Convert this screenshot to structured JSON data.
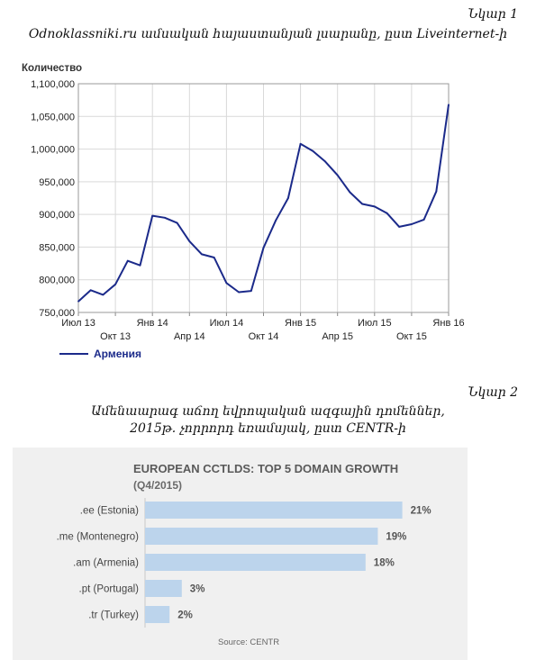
{
  "figure1": {
    "label": "Նկար 1",
    "caption": "Odnoklassniki.ru ամսական հայաստանյան լսարանը, ըստ Liveinternet-ի"
  },
  "figure2": {
    "label": "Նկար 2",
    "caption_line1": "Ամենաարագ աճող եվրոպական ազգային դոմեններ,",
    "caption_line2": "2015թ. չորրորդ եռամսյակ, ըստ CENTR-ի"
  },
  "chart_data": [
    {
      "type": "line",
      "ylabel": "Количество",
      "ylim": [
        750000,
        1100000
      ],
      "yticks": [
        750000,
        800000,
        850000,
        900000,
        950000,
        1000000,
        1050000,
        1100000
      ],
      "ytick_labels": [
        "750,000",
        "800,000",
        "850,000",
        "900,000",
        "950,000",
        "1,000,000",
        "1,050,000",
        "1,100,000"
      ],
      "x": [
        "Июл 13",
        "Авг 13",
        "Сен 13",
        "Окт 13",
        "Ноя 13",
        "Дек 13",
        "Янв 14",
        "Фев 14",
        "Мар 14",
        "Апр 14",
        "Май 14",
        "Июн 14",
        "Июл 14",
        "Авг 14",
        "Сен 14",
        "Окт 14",
        "Ноя 14",
        "Дек 14",
        "Янв 15",
        "Фев 15",
        "Мар 15",
        "Апр 15",
        "Май 15",
        "Июн 15",
        "Июл 15",
        "Авг 15",
        "Сен 15",
        "Окт 15",
        "Ноя 15",
        "Дек 15",
        "Янв 16"
      ],
      "xticks": [
        {
          "label": "Июл 13",
          "index": 0,
          "row": 0
        },
        {
          "label": "Окт 13",
          "index": 3,
          "row": 1
        },
        {
          "label": "Янв 14",
          "index": 6,
          "row": 0
        },
        {
          "label": "Апр 14",
          "index": 9,
          "row": 1
        },
        {
          "label": "Июл 14",
          "index": 12,
          "row": 0
        },
        {
          "label": "Окт 14",
          "index": 15,
          "row": 1
        },
        {
          "label": "Янв 15",
          "index": 18,
          "row": 0
        },
        {
          "label": "Апр 15",
          "index": 21,
          "row": 1
        },
        {
          "label": "Июл 15",
          "index": 24,
          "row": 0
        },
        {
          "label": "Окт 15",
          "index": 27,
          "row": 1
        },
        {
          "label": "Янв 16",
          "index": 30,
          "row": 0
        }
      ],
      "series": [
        {
          "name": "Армения",
          "color": "#1b2a8a",
          "values": [
            767000,
            784000,
            777000,
            793000,
            829000,
            822000,
            898000,
            895000,
            887000,
            859000,
            839000,
            834000,
            795000,
            781000,
            783000,
            849000,
            891000,
            925000,
            1008000,
            997000,
            981000,
            960000,
            934000,
            916000,
            912000,
            902000,
            881000,
            885000,
            892000,
            935000,
            1068000
          ]
        }
      ],
      "grid": true,
      "legend": "bottom-left"
    },
    {
      "type": "bar",
      "orientation": "horizontal",
      "title": "EUROPEAN CCTLDS: TOP 5 DOMAIN GROWTH",
      "subtitle": "(Q4/2015)",
      "categories": [
        ".ee (Estonia)",
        ".me (Montenegro)",
        ".am (Armenia)",
        ".pt (Portugal)",
        ".tr (Turkey)"
      ],
      "values": [
        21,
        19,
        18,
        3,
        2
      ],
      "value_labels": [
        "21%",
        "19%",
        "18%",
        "3%",
        "2%"
      ],
      "bar_color": "#bcd4ec",
      "source": "Source: CENTR"
    }
  ]
}
